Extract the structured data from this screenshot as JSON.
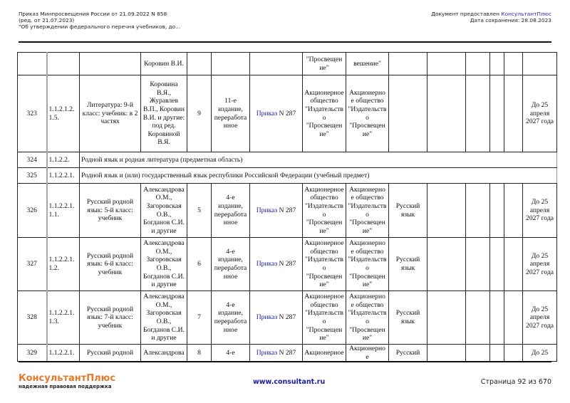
{
  "header": {
    "left_lines": [
      "Приказ Минпросвещения России от 21.09.2022 N 858",
      "(ред. от 21.07.2023)",
      "\"Об утверждении федерального перечня учебников, до..."
    ],
    "provided_prefix": "Документ предоставлен ",
    "provided_brand": "КонсультантПлюс",
    "saved_date": "Дата сохранения: 28.08.2023"
  },
  "table": {
    "rows": [
      {
        "type": "full",
        "cells": [
          "",
          "",
          "",
          "Коровин В.И.",
          "",
          "",
          "",
          "\"Просвещен ие\"",
          "вешение\"",
          "",
          "",
          "",
          "",
          "",
          ""
        ]
      },
      {
        "type": "full",
        "cells": [
          "323",
          "1.1.2.1.2. 1.5.",
          "Литература: 9-й класс: учебник: в 2 частях",
          "Коровина В.Я., Журавлев В.П., Коровин В.И. и другие: под ред. Коровиной В.Я.",
          "9",
          "11-е издание, переработа нное",
          "LINK",
          "Акционерное общество \"Издательств о \"Просвещен ие\"",
          "Акционерное общество \"Издательств о \"Просвещен ие\"",
          "",
          "",
          "",
          "",
          "",
          "До 25 апреля 2027 года"
        ]
      },
      {
        "type": "wide",
        "cells": [
          "324",
          "1.1.2.2.",
          "Родной язык и родная литература (предметная область)"
        ]
      },
      {
        "type": "wide",
        "cells": [
          "325",
          "1.1.2.2.1.",
          "Родной язык и (или) государственный язык республики Российской Федерации (учебный предмет)"
        ]
      },
      {
        "type": "full",
        "cells": [
          "326",
          "1.1.2.2.1. 1.1.",
          "Русский родной язык: 5-й класс: учебник",
          "Александрова О.М., Загоровская О.В., Богданов С.И. и другие",
          "5",
          "4-е издание, переработа нное",
          "LINK",
          "Акционерное общество \"Издательств о \"Просвещен ие\"",
          "Акционерное общество \"Издательств о \"Просвещен ие\"",
          "Русский язык",
          "",
          "",
          "",
          "",
          "До 25 апреля 2027 года"
        ]
      },
      {
        "type": "full",
        "cells": [
          "327",
          "1.1.2.2.1. 1.2.",
          "Русский родной язык: 6-й класс: учебник",
          "Александрова О.М., Загоровская О.В., Богданов С.И. и другие",
          "6",
          "4-е издание, переработа нное",
          "LINK",
          "Акционерное общество \"Издательств о \"Просвещен ие\"",
          "Акционерное общество \"Издательств о \"Просвещен ие\"",
          "Русский язык",
          "",
          "",
          "",
          "",
          "До 25 апреля 2027 года"
        ]
      },
      {
        "type": "full",
        "cells": [
          "328",
          "1.1.2.2.1. 1.3.",
          "Русский родной язык: 7-й класс: учебник",
          "Александрова О.М., Загоровская О.В., Богданов С.И. и другие",
          "7",
          "4-е издание, переработа нное",
          "LINK",
          "Акционерное общество \"Издательств о \"Просвещен ие\"",
          "Акционерное общество \"Издательств о \"Просвещен ие\"",
          "Русский язык",
          "",
          "",
          "",
          "",
          "До 25 апреля 2027 года"
        ]
      },
      {
        "type": "full",
        "cells": [
          "329",
          "1.1.2.2.1.",
          "Русский родной",
          "Александрова",
          "8",
          "4-е",
          "LINK",
          "Акционерное",
          "Акционерное",
          "Русский",
          "",
          "",
          "",
          "",
          "До 25"
        ]
      }
    ],
    "order_link": "Приказ",
    "order_number": " N 287"
  },
  "footer": {
    "brand": "КонсультантПлюс",
    "slogan": "надежная правовая поддержка",
    "url": "www.consultant.ru",
    "page": "Страница 92 из 670"
  },
  "colors": {
    "link": "#1a1aa6",
    "brand_orange": "#e8782a"
  }
}
